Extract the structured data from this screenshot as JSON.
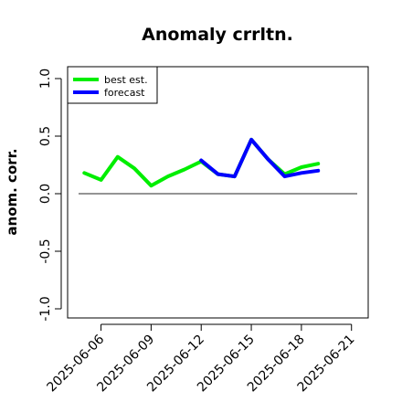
{
  "chart_data": {
    "type": "line",
    "title": "Anomaly crrltn.",
    "xlabel": "",
    "ylabel": "anom. corr.",
    "ylim": [
      -1.0,
      1.0
    ],
    "yticks": [
      -1.0,
      -0.5,
      0.0,
      0.5,
      1.0
    ],
    "ytick_labels": [
      "-1.0",
      "-0.5",
      "0.0",
      "0.5",
      "1.0"
    ],
    "x_range": [
      "2025-06-04",
      "2025-06-22"
    ],
    "xticks": [
      "2025-06-06",
      "2025-06-09",
      "2025-06-12",
      "2025-06-15",
      "2025-06-18",
      "2025-06-21"
    ],
    "xtick_colors": [
      "#000000",
      "#000000",
      "#228b22",
      "#000000",
      "#000000",
      "#000000"
    ],
    "reference_line": {
      "y": 0.0,
      "color": "#555555"
    },
    "grid": false,
    "legend_position": "top-left",
    "series": [
      {
        "name": "best est.",
        "color": "#00ee00",
        "x": [
          "2025-06-05",
          "2025-06-06",
          "2025-06-07",
          "2025-06-08",
          "2025-06-09",
          "2025-06-10",
          "2025-06-11",
          "2025-06-12",
          "2025-06-13",
          "2025-06-14",
          "2025-06-15",
          "2025-06-16",
          "2025-06-17",
          "2025-06-18",
          "2025-06-19"
        ],
        "values": [
          0.18,
          0.12,
          0.32,
          0.22,
          0.07,
          0.15,
          0.21,
          0.28,
          0.17,
          0.15,
          0.47,
          0.3,
          0.17,
          0.23,
          0.26
        ]
      },
      {
        "name": "forecast",
        "color": "#0000ff",
        "x": [
          "2025-06-12",
          "2025-06-13",
          "2025-06-14",
          "2025-06-15",
          "2025-06-16",
          "2025-06-17",
          "2025-06-18",
          "2025-06-19"
        ],
        "values": [
          0.29,
          0.17,
          0.15,
          0.47,
          0.3,
          0.15,
          0.18,
          0.2
        ]
      }
    ]
  }
}
